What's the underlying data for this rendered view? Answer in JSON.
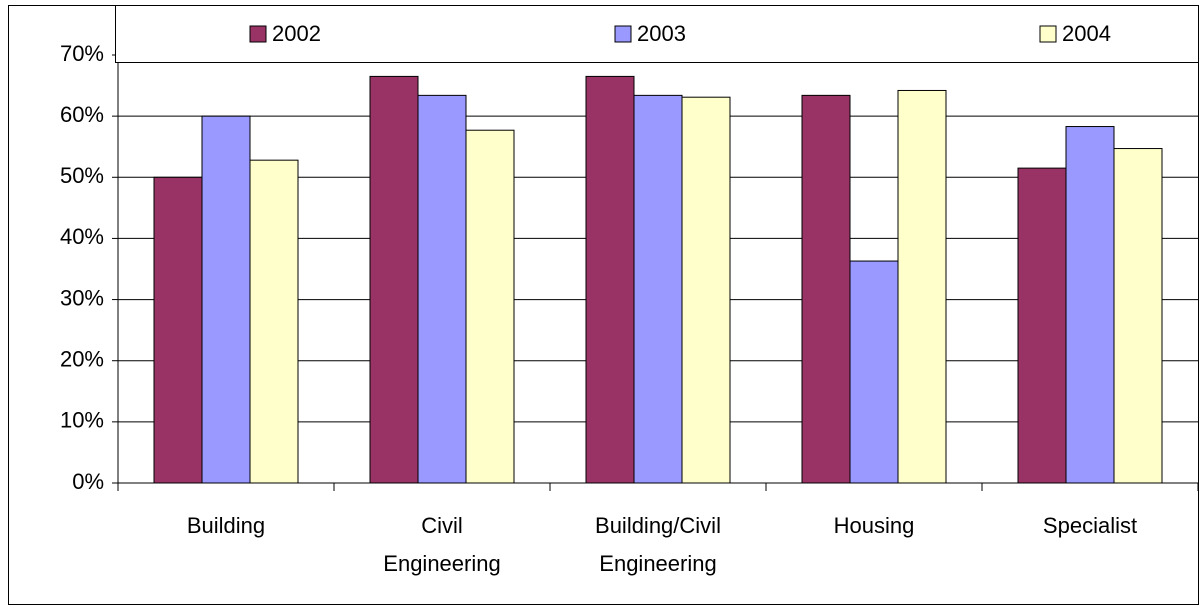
{
  "chart_data": {
    "type": "bar",
    "categories": [
      "Building",
      "Civil Engineering",
      "Building/Civil Engineering",
      "Housing",
      "Specialist"
    ],
    "series": [
      {
        "name": "2002",
        "color": "#993366",
        "values": [
          50,
          66.5,
          66.5,
          63.4,
          51.5
        ]
      },
      {
        "name": "2003",
        "color": "#9999ff",
        "values": [
          60,
          63.4,
          63.4,
          36.3,
          58.3
        ]
      },
      {
        "name": "2004",
        "color": "#ffffcc",
        "values": [
          52.8,
          57.7,
          63.1,
          64.2,
          54.7
        ]
      }
    ],
    "ylim": [
      0,
      70
    ],
    "yticks": [
      {
        "value": 0,
        "label": "0%"
      },
      {
        "value": 10,
        "label": "10%"
      },
      {
        "value": 20,
        "label": "20%"
      },
      {
        "value": 30,
        "label": "30%"
      },
      {
        "value": 40,
        "label": "40%"
      },
      {
        "value": 50,
        "label": "50%"
      },
      {
        "value": 60,
        "label": "60%"
      },
      {
        "value": 70,
        "label": "70%"
      }
    ],
    "grid": true,
    "legend": "top"
  }
}
